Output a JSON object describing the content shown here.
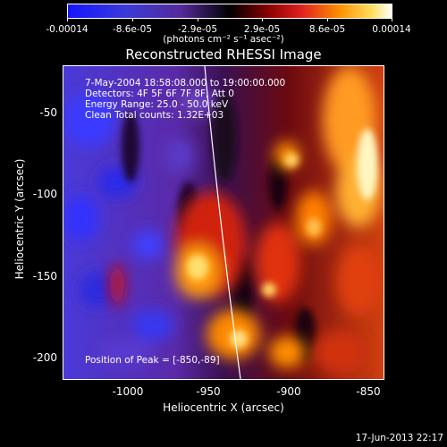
{
  "colors": {
    "low": "#1010ff",
    "mid": "#000000",
    "high": "#ffffff",
    "accent_orange": "#ff8800",
    "accent_red": "#d81010",
    "accent_purple": "#6a2aa8",
    "limb_line": "#ffffff"
  },
  "colorbar": {
    "ticks": [
      "-0.00014",
      "-8.6e-05",
      "-2.9e-05",
      "2.9e-05",
      "8.6e-05",
      "0.00014"
    ],
    "unit": "(photons cm⁻² s⁻¹ asec⁻²)"
  },
  "image": {
    "title": "Reconstructed RHESSI Image",
    "info_lines": [
      "7-May-2004 18:58:08.000 to 19:00:00.000",
      "Detectors: 4F 5F 6F 7F 8F, Att 0",
      "Energy Range: 25.0 - 50.0 keV",
      "Clean     Total counts: 1.32E+03"
    ],
    "peak_text": "Position of Peak = [-850,-89]"
  },
  "axes": {
    "ylabel": "Heliocentric Y (arcsec)",
    "xlabel": "Heliocentric X (arcsec)",
    "yticks": [
      "-50",
      "-100",
      "-150",
      "-200"
    ],
    "xticks": [
      "-1000",
      "-950",
      "-900",
      "-850"
    ]
  },
  "timestamp": "17-Jun-2013 22:17"
}
